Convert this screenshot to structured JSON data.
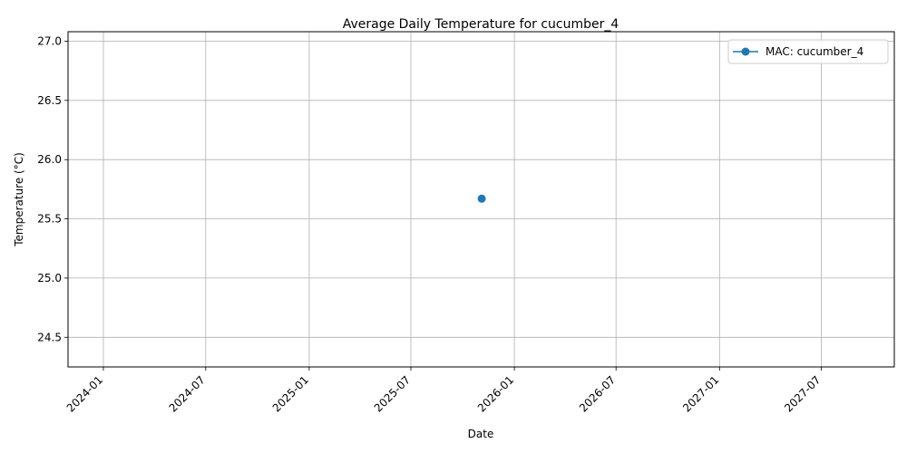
{
  "chart_data": {
    "type": "line",
    "title": "Average Daily Temperature for cucumber_4",
    "xlabel": "Date",
    "ylabel": "Temperature (°C)",
    "x_ticks": [
      "2024-01",
      "2024-07",
      "2025-01",
      "2025-07",
      "2026-01",
      "2026-07",
      "2027-01",
      "2027-07"
    ],
    "xlim": [
      "2023-10-30",
      "2027-11-08"
    ],
    "y_ticks": [
      "24.5",
      "25.0",
      "25.5",
      "26.0",
      "26.5",
      "27.0"
    ],
    "ylim": [
      24.25,
      27.08
    ],
    "grid": true,
    "legend_position": "top-right",
    "series": [
      {
        "name": "MAC: cucumber_4",
        "color": "#1f77b4",
        "marker": "circle",
        "points": [
          {
            "x": "2025-11-04",
            "y": 25.67
          }
        ]
      }
    ]
  }
}
